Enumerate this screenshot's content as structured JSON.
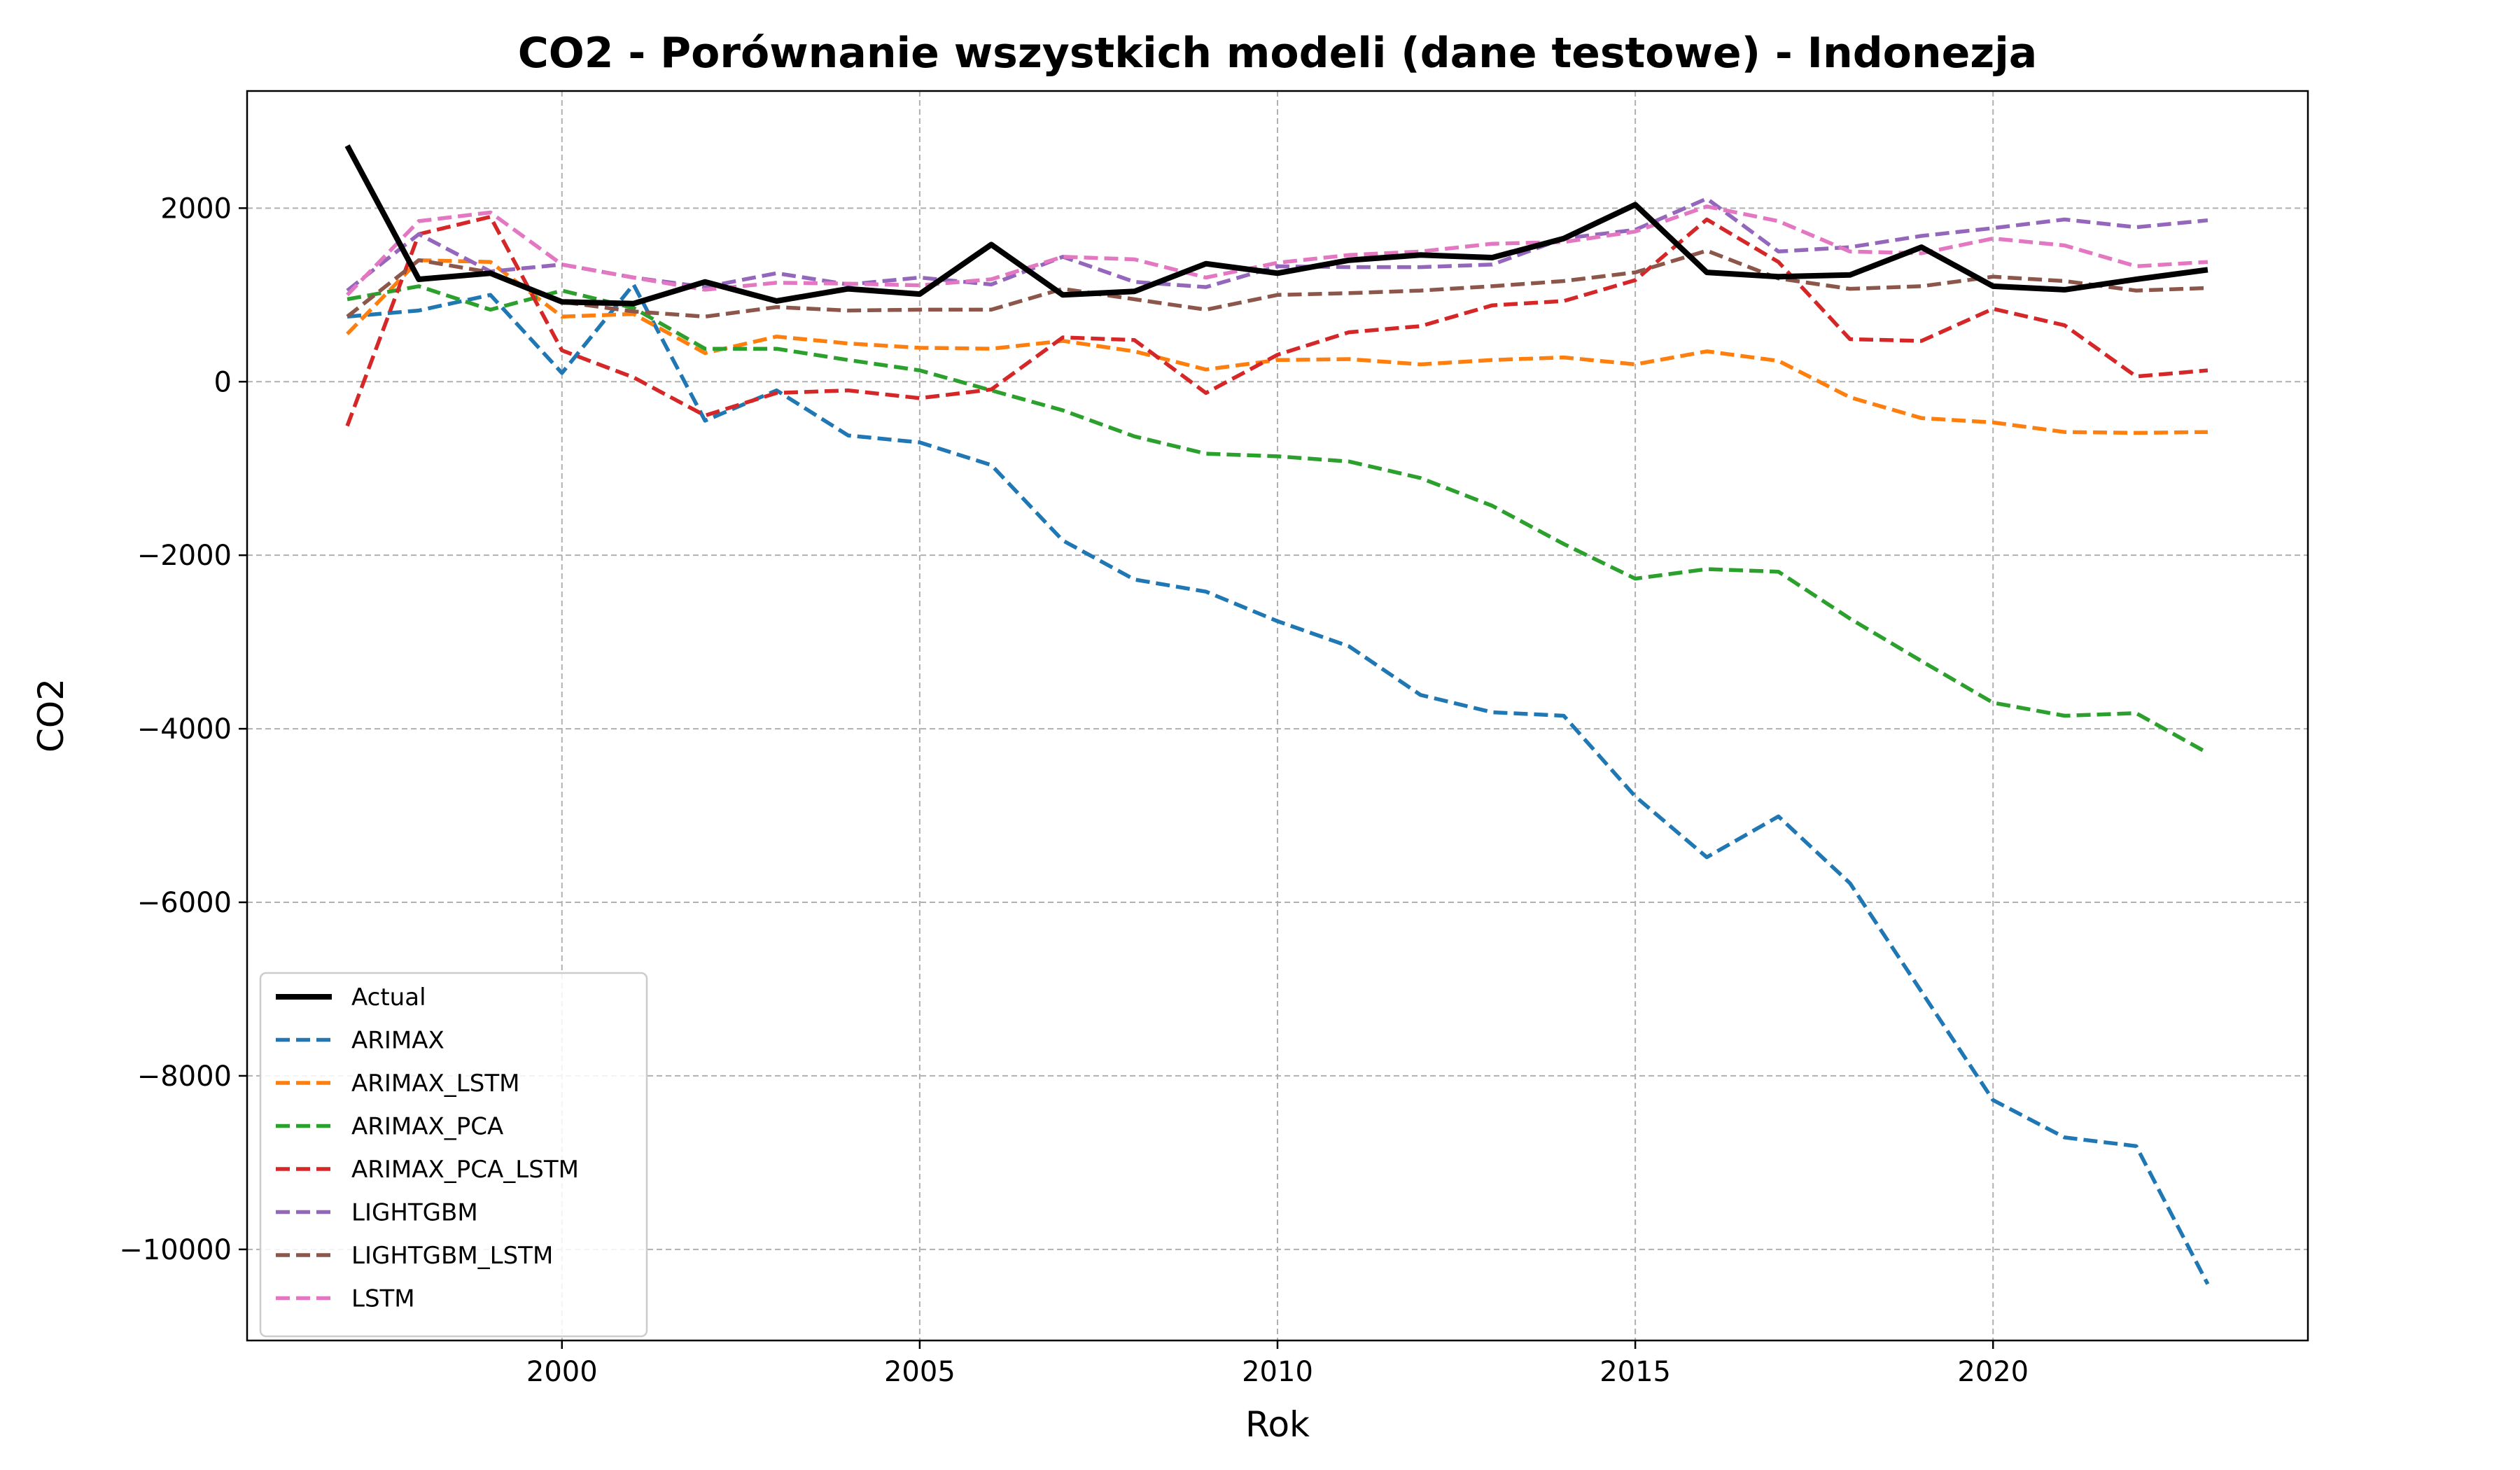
{
  "chart_data": {
    "type": "line",
    "title": "CO2 - Porównanie wszystkich modeli (dane testowe) - Indonezja",
    "xlabel": "Rok",
    "ylabel": "CO2",
    "xlim": [
      1995.6,
      2024.4
    ],
    "ylim": [
      -11050,
      3350
    ],
    "xticks": [
      2000,
      2005,
      2010,
      2015,
      2020
    ],
    "yticks": [
      -10000,
      -8000,
      -6000,
      -4000,
      -2000,
      0,
      2000
    ],
    "grid": true,
    "legend_position": "lower-left",
    "x": [
      1997,
      1998,
      1999,
      2000,
      2001,
      2002,
      2003,
      2004,
      2005,
      2006,
      2007,
      2008,
      2009,
      2010,
      2011,
      2012,
      2013,
      2014,
      2015,
      2016,
      2017,
      2018,
      2019,
      2020,
      2021,
      2022,
      2023
    ],
    "series": [
      {
        "name": "Actual",
        "color": "#000000",
        "style": "solid",
        "values": [
          2720,
          1180,
          1250,
          920,
          900,
          1150,
          930,
          1070,
          1010,
          1580,
          1000,
          1040,
          1360,
          1250,
          1400,
          1460,
          1430,
          1650,
          2040,
          1260,
          1210,
          1230,
          1550,
          1100,
          1060,
          1180,
          1290
        ]
      },
      {
        "name": "ARIMAX",
        "color": "#1f77b4",
        "style": "dashed",
        "values": [
          750,
          820,
          1000,
          100,
          1120,
          -450,
          -100,
          -620,
          -700,
          -960,
          -1830,
          -2280,
          -2420,
          -2760,
          -3050,
          -3610,
          -3810,
          -3850,
          -4780,
          -5480,
          -5010,
          -5780,
          -7030,
          -8280,
          -8710,
          -8810,
          -10400
        ]
      },
      {
        "name": "ARIMAX_LSTM",
        "color": "#ff7f0e",
        "style": "dashed",
        "values": [
          550,
          1400,
          1380,
          750,
          780,
          330,
          520,
          440,
          390,
          380,
          470,
          350,
          140,
          250,
          260,
          200,
          250,
          280,
          200,
          350,
          240,
          -180,
          -420,
          -470,
          -580,
          -590,
          -580
        ]
      },
      {
        "name": "ARIMAX_PCA",
        "color": "#2ca02c",
        "style": "dashed",
        "values": [
          950,
          1100,
          830,
          1050,
          850,
          380,
          380,
          250,
          130,
          -100,
          -330,
          -630,
          -830,
          -860,
          -920,
          -1110,
          -1430,
          -1870,
          -2270,
          -2160,
          -2190,
          -2730,
          -3220,
          -3700,
          -3850,
          -3820,
          -4280
        ]
      },
      {
        "name": "ARIMAX_PCA_LSTM",
        "color": "#d62728",
        "style": "dashed",
        "values": [
          -510,
          1700,
          1900,
          360,
          50,
          -390,
          -130,
          -100,
          -190,
          -90,
          510,
          480,
          -130,
          310,
          570,
          640,
          880,
          930,
          1170,
          1870,
          1380,
          490,
          470,
          840,
          650,
          60,
          130
        ]
      },
      {
        "name": "LIGHTGBM",
        "color": "#9467bd",
        "style": "dashed",
        "values": [
          1050,
          1700,
          1270,
          1350,
          1200,
          1090,
          1250,
          1120,
          1200,
          1120,
          1440,
          1150,
          1090,
          1330,
          1320,
          1320,
          1350,
          1650,
          1750,
          2110,
          1500,
          1550,
          1680,
          1770,
          1870,
          1780,
          1860
        ]
      },
      {
        "name": "LIGHTGBM_LSTM",
        "color": "#8c564b",
        "style": "dashed",
        "values": [
          750,
          1400,
          1260,
          920,
          810,
          750,
          860,
          820,
          830,
          830,
          1070,
          950,
          830,
          1000,
          1020,
          1050,
          1100,
          1160,
          1260,
          1510,
          1190,
          1070,
          1100,
          1210,
          1160,
          1050,
          1080
        ]
      },
      {
        "name": "LSTM",
        "color": "#e377c2",
        "style": "dashed",
        "values": [
          1000,
          1850,
          1950,
          1350,
          1200,
          1060,
          1140,
          1130,
          1110,
          1180,
          1440,
          1410,
          1200,
          1370,
          1460,
          1500,
          1590,
          1610,
          1730,
          2020,
          1850,
          1500,
          1480,
          1650,
          1570,
          1330,
          1380
        ]
      }
    ]
  }
}
